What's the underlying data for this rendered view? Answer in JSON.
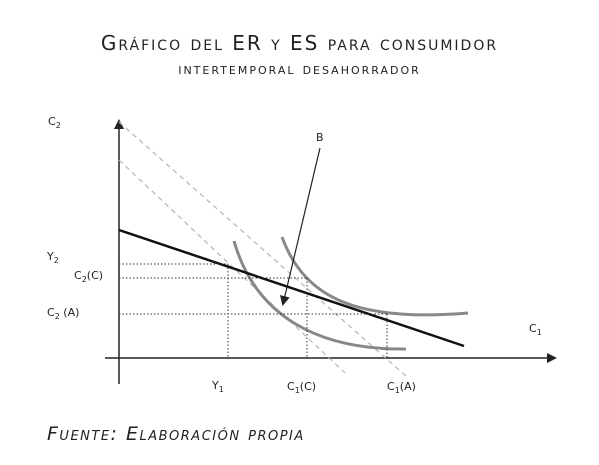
{
  "title": {
    "line1": "Gráfico del ER y ES para consumidor",
    "line2": "intertemporal desahorrador"
  },
  "source": "Fuente: Elaboración propia",
  "axes": {
    "y_label": "C",
    "y_label_sub": "2",
    "x_label": "C",
    "x_label_sub": "1"
  },
  "labels": {
    "b": "B",
    "y2": "Y",
    "y2_sub": "2",
    "c2c_pre": "C",
    "c2c_sub": "2",
    "c2c_post": "(C)",
    "c2a": "C",
    "c2a_sub": "2",
    "c2a_post": " (A)",
    "y1": "Y",
    "y1_sub": "1",
    "c1c_pre": "C",
    "c1c_sub": "1",
    "c1c_post": "(C)",
    "c1a_pre": "C",
    "c1a_sub": "1",
    "c1a_post": "(A)"
  },
  "colors": {
    "budget_line": "#111111",
    "indifference_curve": "#888888",
    "dashed_line": "#b5b5b5",
    "axis": "#222222",
    "guide": "#333333"
  }
}
